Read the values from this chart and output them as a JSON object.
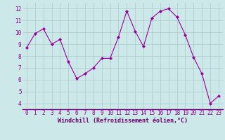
{
  "hours": [
    0,
    1,
    2,
    3,
    4,
    5,
    6,
    7,
    8,
    9,
    10,
    11,
    12,
    13,
    14,
    15,
    16,
    17,
    18,
    19,
    20,
    21,
    22,
    23
  ],
  "values": [
    8.7,
    9.9,
    10.3,
    9.0,
    9.4,
    7.5,
    6.1,
    6.5,
    7.0,
    7.8,
    7.8,
    9.6,
    11.8,
    10.1,
    8.8,
    11.2,
    11.8,
    12.0,
    11.3,
    9.8,
    7.9,
    6.5,
    4.0,
    4.6
  ],
  "line_color": "#990099",
  "marker": "D",
  "marker_size": 2.0,
  "bg_color": "#cce8e8",
  "grid_color": "#aacccc",
  "xlabel": "Windchill (Refroidissement éolien,°C)",
  "xlabel_color": "#660066",
  "tick_color": "#880088",
  "spine_color": "#880088",
  "ylim": [
    3.5,
    12.5
  ],
  "xlim": [
    -0.5,
    23.5
  ],
  "yticks": [
    4,
    5,
    6,
    7,
    8,
    9,
    10,
    11,
    12
  ],
  "xticks": [
    0,
    1,
    2,
    3,
    4,
    5,
    6,
    7,
    8,
    9,
    10,
    11,
    12,
    13,
    14,
    15,
    16,
    17,
    18,
    19,
    20,
    21,
    22,
    23
  ],
  "xtick_labels": [
    "0",
    "1",
    "2",
    "3",
    "4",
    "5",
    "6",
    "7",
    "8",
    "9",
    "10",
    "11",
    "12",
    "13",
    "14",
    "15",
    "16",
    "17",
    "18",
    "19",
    "20",
    "21",
    "22",
    "23"
  ],
  "tick_fontsize": 5.5,
  "xlabel_fontsize": 6.0
}
